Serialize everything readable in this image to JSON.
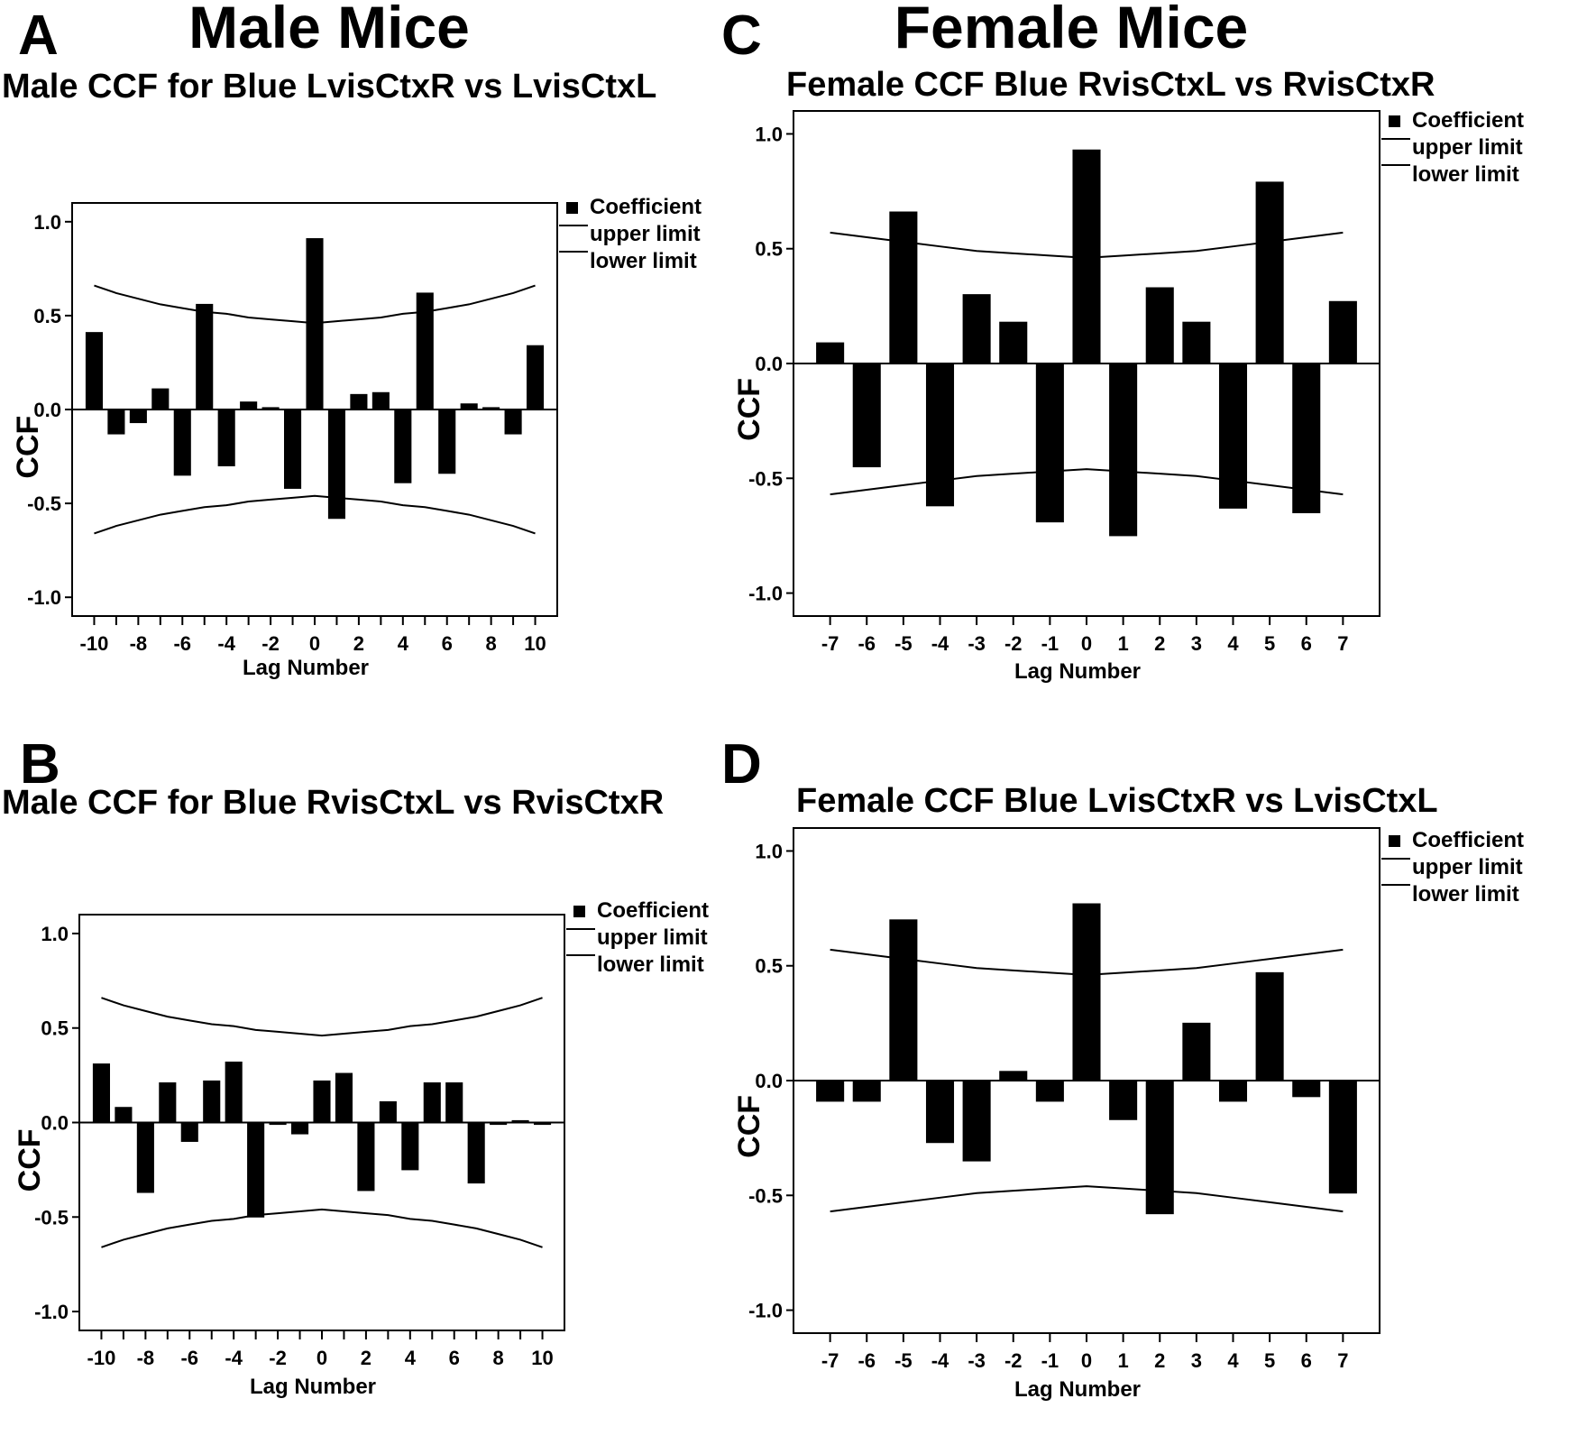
{
  "headings": {
    "male": "Male Mice",
    "female": "Female Mice"
  },
  "legend": {
    "coefficient": "Coefficient",
    "upper": "upper limit",
    "lower": "lower limit"
  },
  "chart_data": [
    {
      "panel": "A",
      "type": "bar",
      "title": "Male CCF for Blue LvisCtxR vs LvisCtxL",
      "xlabel": "Lag  Number",
      "ylabel": "CCF",
      "ylim": [
        -1.1,
        1.1
      ],
      "yticks": [
        1.0,
        0.5,
        0.0,
        -0.5,
        -1.0
      ],
      "ytick_labels": [
        "1.0",
        "0.5",
        "0.0",
        "-0.5",
        "-1.0"
      ],
      "xticks_labeled": [
        "-10",
        "-8",
        "-6",
        "-4",
        "-2",
        "0",
        "2",
        "4",
        "6",
        "8",
        "10"
      ],
      "x": [
        -10,
        -9,
        -8,
        -7,
        -6,
        -5,
        -4,
        -3,
        -2,
        -1,
        0,
        1,
        2,
        3,
        4,
        5,
        6,
        7,
        8,
        9,
        10
      ],
      "series": [
        {
          "name": "Coefficient",
          "values": [
            0.41,
            -0.13,
            -0.07,
            0.11,
            -0.35,
            0.56,
            -0.3,
            0.04,
            0.01,
            -0.42,
            0.91,
            -0.58,
            0.08,
            0.09,
            -0.39,
            0.62,
            -0.34,
            0.03,
            0.01,
            -0.13,
            0.34
          ]
        },
        {
          "name": "upper limit",
          "values": [
            0.66,
            0.62,
            0.59,
            0.56,
            0.54,
            0.52,
            0.51,
            0.49,
            0.48,
            0.47,
            0.46,
            0.47,
            0.48,
            0.49,
            0.51,
            0.52,
            0.54,
            0.56,
            0.59,
            0.62,
            0.66
          ]
        },
        {
          "name": "lower limit",
          "values": [
            -0.66,
            -0.62,
            -0.59,
            -0.56,
            -0.54,
            -0.52,
            -0.51,
            -0.49,
            -0.48,
            -0.47,
            -0.46,
            -0.47,
            -0.48,
            -0.49,
            -0.51,
            -0.52,
            -0.54,
            -0.56,
            -0.59,
            -0.62,
            -0.66
          ]
        }
      ],
      "legend_position": "right"
    },
    {
      "panel": "B",
      "type": "bar",
      "title": "Male CCF for Blue RvisCtxL vs RvisCtxR",
      "xlabel": "Lag  Number",
      "ylabel": "CCF",
      "ylim": [
        -1.1,
        1.1
      ],
      "yticks": [
        1.0,
        0.5,
        0.0,
        -0.5,
        -1.0
      ],
      "ytick_labels": [
        "1.0",
        "0.5",
        "0.0",
        "-0.5",
        "-1.0"
      ],
      "xticks_labeled": [
        "-10",
        "-8",
        "-6",
        "-4",
        "-2",
        "0",
        "2",
        "4",
        "6",
        "8",
        "10"
      ],
      "x": [
        -10,
        -9,
        -8,
        -7,
        -6,
        -5,
        -4,
        -3,
        -2,
        -1,
        0,
        1,
        2,
        3,
        4,
        5,
        6,
        7,
        8,
        9,
        10
      ],
      "series": [
        {
          "name": "Coefficient",
          "values": [
            0.31,
            0.08,
            -0.37,
            0.21,
            -0.1,
            0.22,
            0.32,
            -0.5,
            -0.01,
            -0.06,
            0.22,
            0.26,
            -0.36,
            0.11,
            -0.25,
            0.21,
            0.21,
            -0.32,
            -0.01,
            0.01,
            -0.01
          ]
        },
        {
          "name": "upper limit",
          "values": [
            0.66,
            0.62,
            0.59,
            0.56,
            0.54,
            0.52,
            0.51,
            0.49,
            0.48,
            0.47,
            0.46,
            0.47,
            0.48,
            0.49,
            0.51,
            0.52,
            0.54,
            0.56,
            0.59,
            0.62,
            0.66
          ]
        },
        {
          "name": "lower limit",
          "values": [
            -0.66,
            -0.62,
            -0.59,
            -0.56,
            -0.54,
            -0.52,
            -0.51,
            -0.49,
            -0.48,
            -0.47,
            -0.46,
            -0.47,
            -0.48,
            -0.49,
            -0.51,
            -0.52,
            -0.54,
            -0.56,
            -0.59,
            -0.62,
            -0.66
          ]
        }
      ],
      "legend_position": "right"
    },
    {
      "panel": "C",
      "type": "bar",
      "title": "Female CCF Blue RvisCtxL vs RvisCtxR",
      "xlabel": "Lag Number",
      "ylabel": "CCF",
      "ylim": [
        -1.1,
        1.1
      ],
      "yticks": [
        1.0,
        0.5,
        0.0,
        -0.5,
        -1.0
      ],
      "ytick_labels": [
        "1.0",
        "0.5",
        "0.0",
        "-0.5",
        "-1.0"
      ],
      "xticks_labeled": [
        "-7",
        "-6",
        "-5",
        "-4",
        "-3",
        "-2",
        "-1",
        "0",
        "1",
        "2",
        "3",
        "4",
        "5",
        "6",
        "7"
      ],
      "x": [
        -7,
        -6,
        -5,
        -4,
        -3,
        -2,
        -1,
        0,
        1,
        2,
        3,
        4,
        5,
        6,
        7
      ],
      "series": [
        {
          "name": "Coefficient",
          "values": [
            0.09,
            -0.45,
            0.66,
            -0.62,
            0.3,
            0.18,
            -0.69,
            0.93,
            -0.75,
            0.33,
            0.18,
            -0.63,
            0.79,
            -0.65,
            0.27
          ]
        },
        {
          "name": "upper limit",
          "values": [
            0.57,
            0.55,
            0.53,
            0.51,
            0.49,
            0.48,
            0.47,
            0.46,
            0.47,
            0.48,
            0.49,
            0.51,
            0.53,
            0.55,
            0.57
          ]
        },
        {
          "name": "lower limit",
          "values": [
            -0.57,
            -0.55,
            -0.53,
            -0.51,
            -0.49,
            -0.48,
            -0.47,
            -0.46,
            -0.47,
            -0.48,
            -0.49,
            -0.51,
            -0.53,
            -0.55,
            -0.57
          ]
        }
      ],
      "legend_position": "right"
    },
    {
      "panel": "D",
      "type": "bar",
      "title": "Female CCF Blue LvisCtxR vs LvisCtxL",
      "xlabel": "Lag Number",
      "ylabel": "CCF",
      "ylim": [
        -1.1,
        1.1
      ],
      "yticks": [
        1.0,
        0.5,
        0.0,
        -0.5,
        -1.0
      ],
      "ytick_labels": [
        "1.0",
        "0.5",
        "0.0",
        "-0.5",
        "-1.0"
      ],
      "xticks_labeled": [
        "-7",
        "-6",
        "-5",
        "-4",
        "-3",
        "-2",
        "-1",
        "0",
        "1",
        "2",
        "3",
        "4",
        "5",
        "6",
        "7"
      ],
      "x": [
        -7,
        -6,
        -5,
        -4,
        -3,
        -2,
        -1,
        0,
        1,
        2,
        3,
        4,
        5,
        6,
        7
      ],
      "series": [
        {
          "name": "Coefficient",
          "values": [
            -0.09,
            -0.09,
            0.7,
            -0.27,
            -0.35,
            0.04,
            -0.09,
            0.77,
            -0.17,
            -0.58,
            0.25,
            -0.09,
            0.47,
            -0.07,
            -0.49
          ]
        },
        {
          "name": "upper limit",
          "values": [
            0.57,
            0.55,
            0.53,
            0.51,
            0.49,
            0.48,
            0.47,
            0.46,
            0.47,
            0.48,
            0.49,
            0.51,
            0.53,
            0.55,
            0.57
          ]
        },
        {
          "name": "lower limit",
          "values": [
            -0.57,
            -0.55,
            -0.53,
            -0.51,
            -0.49,
            -0.48,
            -0.47,
            -0.46,
            -0.47,
            -0.48,
            -0.49,
            -0.51,
            -0.53,
            -0.55,
            -0.57
          ]
        }
      ],
      "legend_position": "right"
    }
  ]
}
